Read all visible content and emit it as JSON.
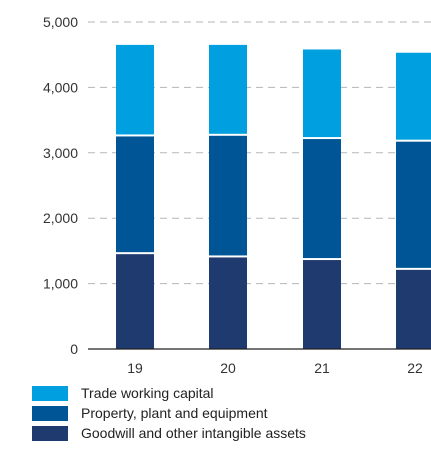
{
  "chart_data": {
    "type": "bar",
    "stacked": true,
    "categories": [
      "19",
      "20",
      "21",
      "22"
    ],
    "series": [
      {
        "name": "Goodwill and other intangible assets",
        "color": "#1f3a6e",
        "values": [
          1450,
          1400,
          1360,
          1210
        ]
      },
      {
        "name": "Property, plant and equipment",
        "color": "#005596",
        "values": [
          1800,
          1860,
          1850,
          1960
        ]
      },
      {
        "name": "Trade working capital",
        "color": "#009fdf",
        "values": [
          1400,
          1390,
          1370,
          1360
        ]
      }
    ],
    "ylim": [
      0,
      5000
    ],
    "yticks": [
      0,
      1000,
      2000,
      3000,
      4000,
      5000
    ],
    "ytick_labels": [
      "0",
      "1,000",
      "2,000",
      "3,000",
      "4,000",
      "5,000"
    ],
    "grid": true,
    "legend_position": "bottom-left",
    "title": "",
    "xlabel": "",
    "ylabel": ""
  }
}
